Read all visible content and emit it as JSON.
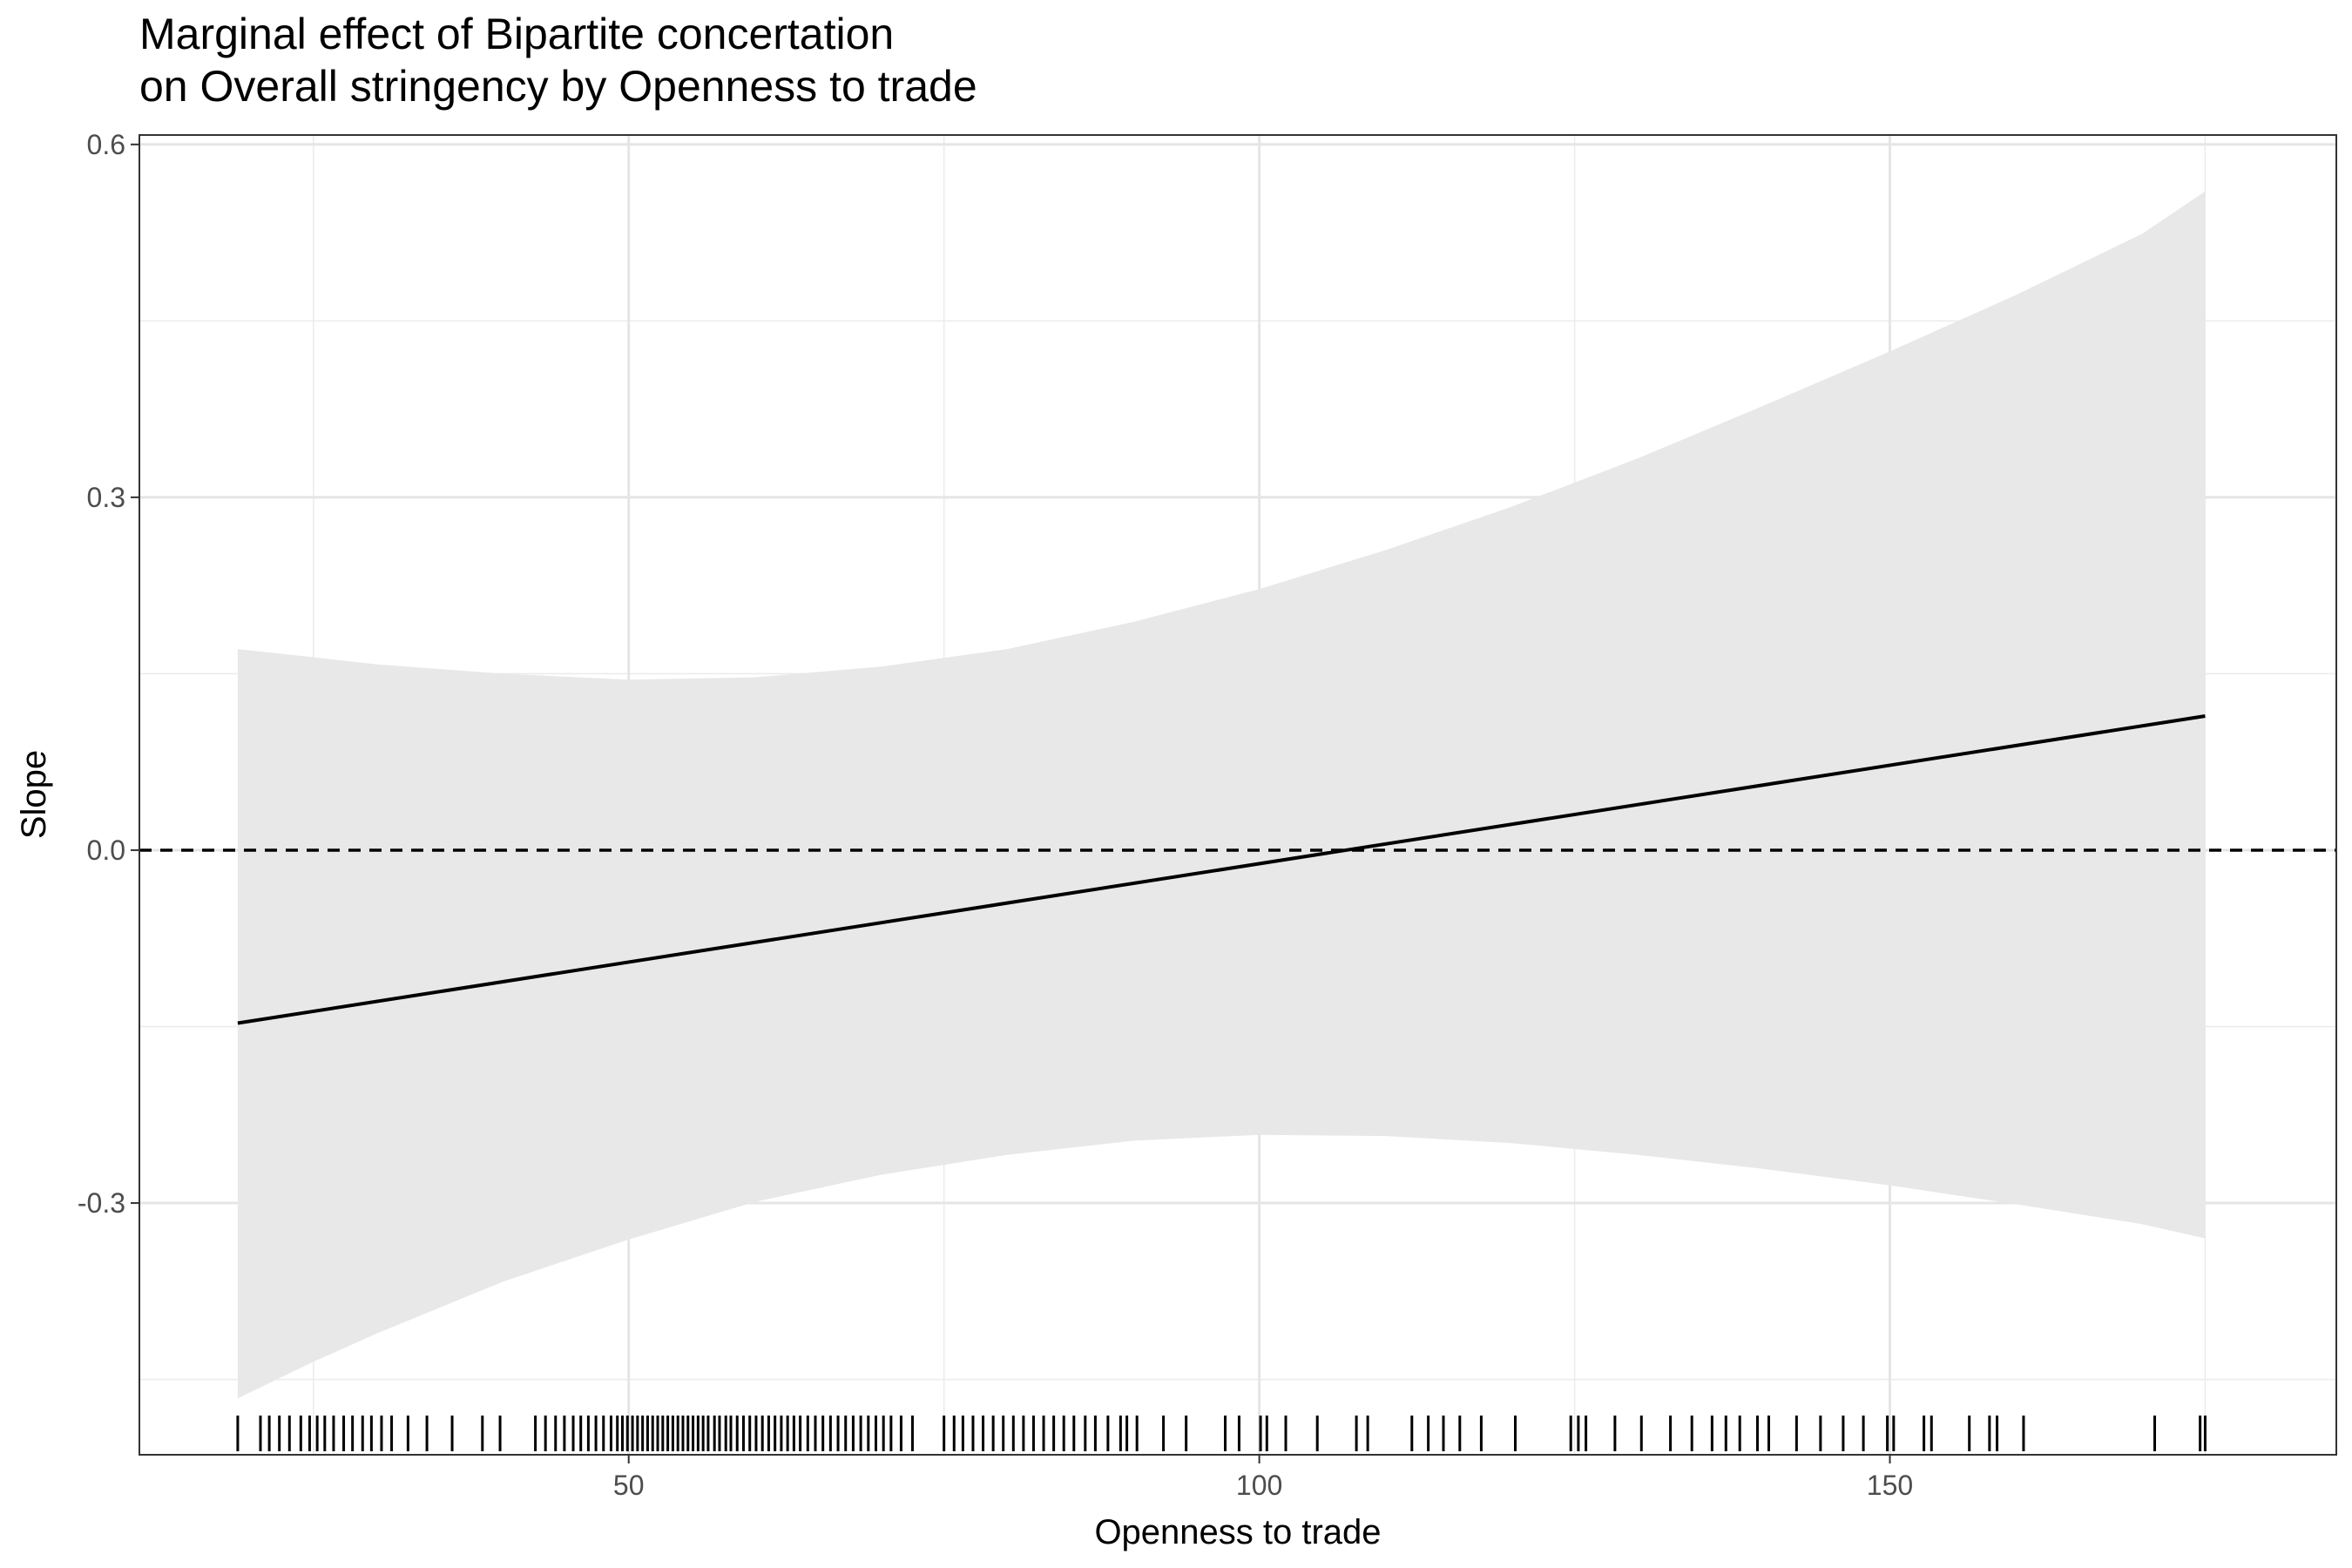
{
  "chart_data": {
    "type": "line",
    "title_lines": [
      "Marginal effect of Bipartite concertation",
      "on Overall stringency by Openness to trade"
    ],
    "xlabel": "Openness to trade",
    "ylabel": "Slope",
    "xlim": [
      11.2,
      185.4
    ],
    "ylim": [
      -0.514,
      0.608
    ],
    "x_ticks": [
      50,
      100,
      150
    ],
    "x_tick_labels": [
      "50",
      "100",
      "150"
    ],
    "y_ticks": [
      -0.3,
      0.0,
      0.3,
      0.6
    ],
    "y_tick_labels": [
      "-0.3",
      "0.0",
      "0.3",
      "0.6"
    ],
    "grid": true,
    "reference_line": {
      "y": 0,
      "style": "dashed"
    },
    "series": [
      {
        "type": "line",
        "x": [
          19,
          175
        ],
        "y": [
          -0.147,
          0.114
        ]
      },
      {
        "type": "ribbon",
        "x": [
          19,
          25,
          30,
          40,
          50,
          60,
          70,
          80,
          90,
          100,
          110,
          120,
          130,
          140,
          150,
          160,
          170,
          175
        ],
        "lower": [
          -0.466,
          -0.435,
          -0.411,
          -0.367,
          -0.331,
          -0.299,
          -0.276,
          -0.259,
          -0.247,
          -0.242,
          -0.243,
          -0.249,
          -0.259,
          -0.271,
          -0.285,
          -0.301,
          -0.318,
          -0.33
        ],
        "upper": [
          0.171,
          0.164,
          0.158,
          0.15,
          0.145,
          0.147,
          0.156,
          0.171,
          0.194,
          0.222,
          0.255,
          0.292,
          0.333,
          0.378,
          0.424,
          0.472,
          0.524,
          0.56
        ]
      }
    ],
    "rug_x": [
      19.0,
      20.8,
      21.5,
      22.3,
      23.1,
      24.0,
      24.7,
      25.3,
      25.9,
      26.6,
      27.4,
      28.1,
      28.9,
      29.6,
      30.4,
      31.2,
      32.5,
      34.0,
      36.0,
      38.4,
      39.8,
      42.6,
      43.4,
      44.2,
      44.9,
      45.6,
      46.2,
      46.8,
      47.4,
      48.0,
      48.6,
      49.1,
      49.5,
      49.9,
      50.3,
      50.7,
      51.1,
      51.5,
      51.9,
      52.3,
      52.7,
      53.1,
      53.5,
      53.9,
      54.3,
      54.7,
      55.1,
      55.5,
      55.9,
      56.3,
      56.8,
      57.2,
      57.7,
      58.1,
      58.6,
      59.1,
      59.6,
      60.1,
      60.6,
      61.1,
      61.6,
      62.1,
      62.6,
      63.1,
      63.6,
      64.2,
      64.8,
      65.4,
      66.0,
      66.6,
      67.2,
      67.8,
      68.4,
      69.0,
      69.6,
      70.2,
      70.8,
      71.6,
      72.5,
      75.0,
      75.8,
      76.5,
      77.3,
      78.1,
      78.9,
      79.7,
      80.5,
      81.3,
      82.1,
      82.9,
      83.7,
      84.5,
      85.3,
      86.2,
      87.0,
      88.0,
      89.0,
      89.5,
      90.3,
      92.4,
      94.2,
      97.3,
      98.4,
      100.1,
      100.6,
      102.1,
      104.6,
      107.7,
      108.6,
      112.1,
      113.4,
      114.6,
      115.9,
      117.6,
      120.3,
      124.7,
      125.3,
      125.9,
      128.2,
      130.3,
      132.6,
      134.3,
      135.9,
      137.0,
      138.1,
      139.5,
      140.4,
      142.6,
      144.5,
      146.3,
      147.9,
      149.8,
      150.3,
      152.7,
      153.3,
      156.3,
      157.9,
      158.5,
      160.6,
      171.0,
      174.6,
      175.0
    ]
  }
}
